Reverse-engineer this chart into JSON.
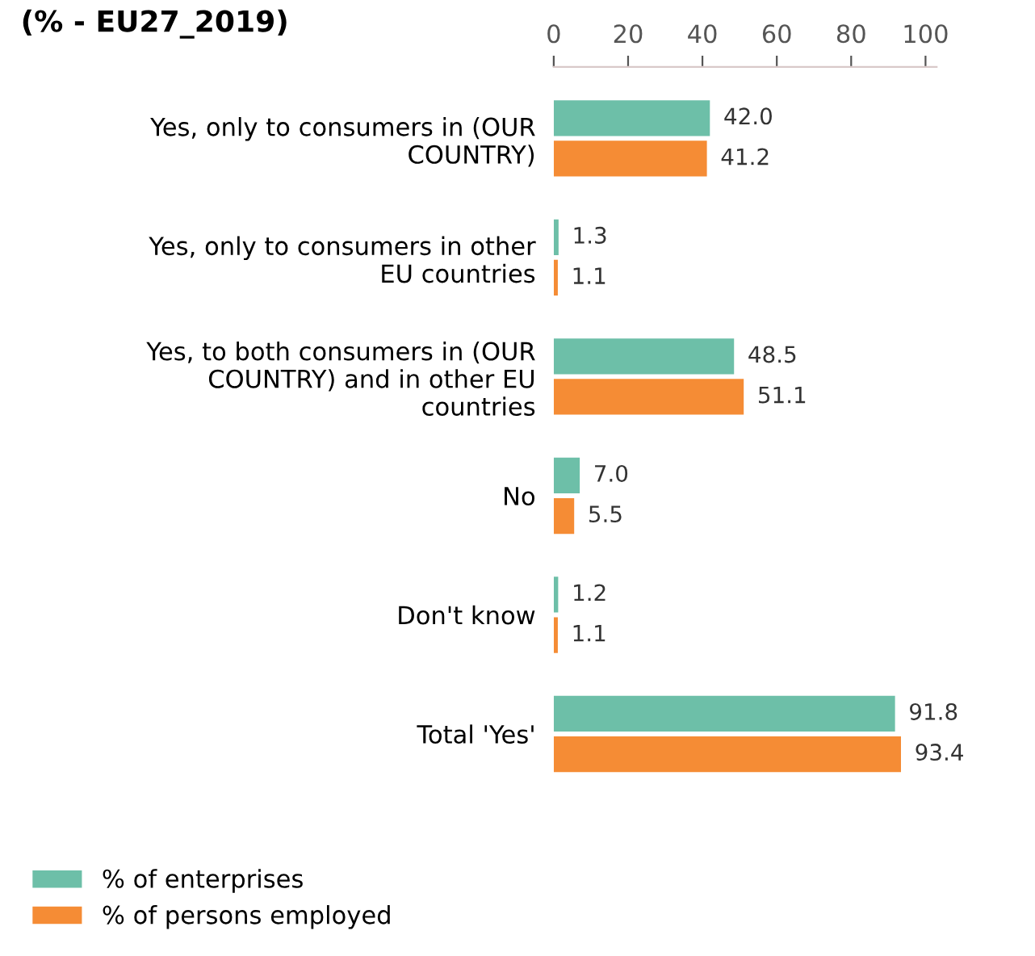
{
  "chart_data": {
    "type": "bar",
    "orientation": "horizontal",
    "title": "(% - EU27_2019)",
    "categories": [
      "Yes, only to consumers in (OUR\nCOUNTRY)",
      "Yes, only to consumers in other\nEU countries",
      "Yes, to both consumers in (OUR\nCOUNTRY) and in other EU\ncountries",
      "No",
      "Don't know",
      "Total 'Yes'"
    ],
    "series": [
      {
        "name": "% of enterprises",
        "color": "#6dbfa8",
        "values": [
          42.0,
          1.3,
          48.5,
          7.0,
          1.2,
          91.8
        ],
        "value_labels": [
          "42.0",
          "1.3",
          "48.5",
          "7.0",
          "1.2",
          "91.8"
        ]
      },
      {
        "name": "% of persons employed",
        "color": "#f58c35",
        "values": [
          41.2,
          1.1,
          51.1,
          5.5,
          1.1,
          93.4
        ],
        "value_labels": [
          "41.2",
          "1.1",
          "51.1",
          "5.5",
          "1.1",
          "93.4"
        ]
      }
    ],
    "xlim": [
      0,
      103
    ],
    "xticks": [
      0,
      20,
      40,
      60,
      80,
      100
    ],
    "grid": false,
    "legend": "bottom left"
  }
}
